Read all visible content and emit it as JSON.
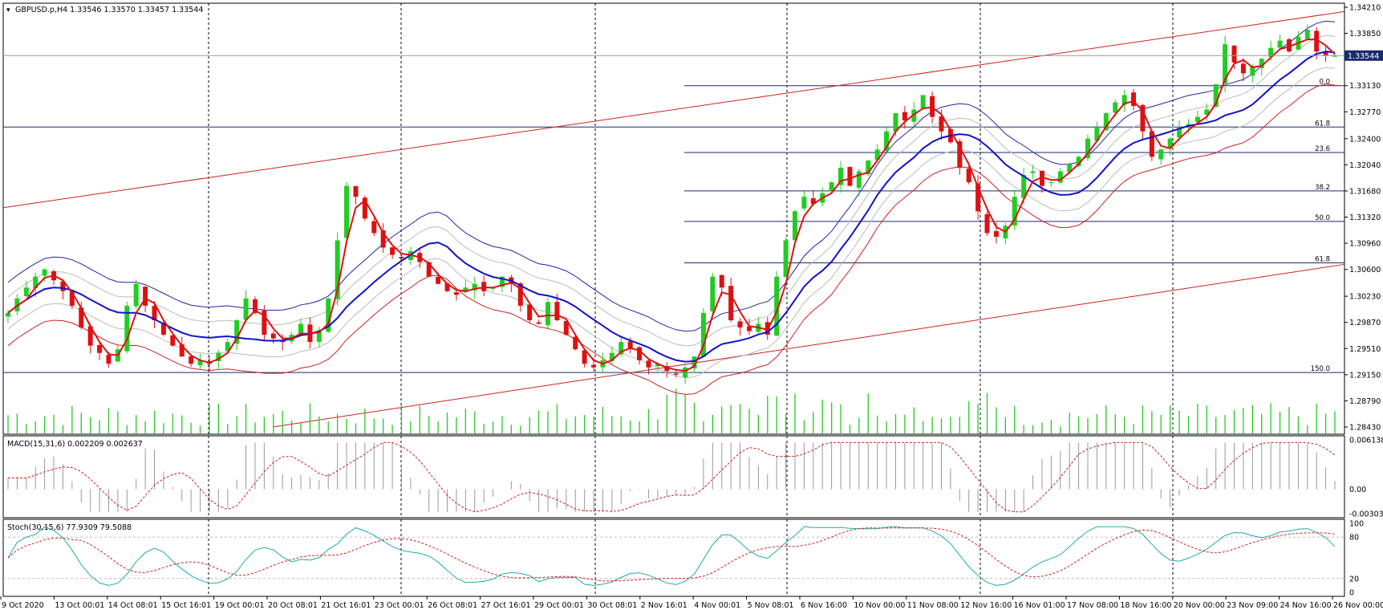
{
  "chart_data": {
    "type": "candlestick",
    "symbol_header": "GBPUSD.p,H4  1.33546 1.33570 1.33457 1.33544",
    "price_axis_labels": [
      "1.34210",
      "1.33850",
      "1.33130",
      "1.32770",
      "1.32400",
      "1.32040",
      "1.31680",
      "1.31320",
      "1.30960",
      "1.30600",
      "1.30230",
      "1.29870",
      "1.29510",
      "1.29150",
      "1.28790",
      "1.28430"
    ],
    "current_price_label": "1.33544",
    "price_range": [
      1.2843,
      1.3421
    ],
    "current_price": 1.33544,
    "date_labels": [
      "9 Oct 2020",
      "13 Oct 00:01",
      "14 Oct 08:01",
      "15 Oct 16:01",
      "19 Oct 00:01",
      "20 Oct 08:01",
      "21 Oct 16:01",
      "23 Oct 00:01",
      "26 Oct 08:01",
      "27 Oct 16:01",
      "29 Oct 00:01",
      "30 Oct 08:01",
      "2 Nov 16:01",
      "4 Nov 00:01",
      "5 Nov 08:01",
      "6 Nov 16:00",
      "10 Nov 00:00",
      "11 Nov 08:00",
      "12 Nov 16:00",
      "16 Nov 01:00",
      "17 Nov 08:00",
      "18 Nov 16:00",
      "20 Nov 00:00",
      "23 Nov 09:00",
      "24 Nov 16:00",
      "26 Nov 00:00"
    ],
    "close_series": [
      1.3,
      1.302,
      1.3035,
      1.305,
      1.306,
      1.3045,
      1.303,
      1.301,
      1.298,
      1.2955,
      1.2945,
      1.293,
      1.295,
      1.301,
      1.304,
      1.301,
      1.299,
      1.297,
      1.2955,
      1.294,
      1.293,
      1.2935,
      1.293,
      1.2945,
      1.296,
      1.299,
      1.302,
      1.3,
      1.297,
      1.2965,
      1.296,
      1.297,
      1.2985,
      1.296,
      1.2975,
      1.302,
      1.31,
      1.3175,
      1.316,
      1.313,
      1.311,
      1.309,
      1.308,
      1.3075,
      1.3085,
      1.307,
      1.305,
      1.304,
      1.303,
      1.3025,
      1.3035,
      1.304,
      1.303,
      1.3035,
      1.305,
      1.304,
      1.301,
      1.299,
      1.2985,
      1.3015,
      1.299,
      1.297,
      1.295,
      1.293,
      1.2925,
      1.2935,
      1.2945,
      1.296,
      1.295,
      1.2935,
      1.2925,
      1.293,
      1.292,
      1.2915,
      1.2925,
      1.294,
      1.3,
      1.305,
      1.3035,
      1.299,
      1.298,
      1.2975,
      1.2985,
      1.297,
      1.305,
      1.31,
      1.314,
      1.316,
      1.315,
      1.3165,
      1.318,
      1.32,
      1.3175,
      1.3195,
      1.321,
      1.3225,
      1.325,
      1.3275,
      1.3265,
      1.328,
      1.33,
      1.327,
      1.325,
      1.3235,
      1.32,
      1.318,
      1.314,
      1.311,
      1.3105,
      1.312,
      1.316,
      1.319,
      1.3195,
      1.3175,
      1.318,
      1.3195,
      1.3205,
      1.3215,
      1.324,
      1.3255,
      1.3275,
      1.329,
      1.33,
      1.3285,
      1.325,
      1.3215,
      1.3225,
      1.324,
      1.3255,
      1.326,
      1.327,
      1.328,
      1.3315,
      1.337,
      1.3345,
      1.333,
      1.334,
      1.335,
      1.3365,
      1.3375,
      1.336,
      1.338,
      1.339,
      1.336,
      1.3355,
      1.3354
    ],
    "indicators": {
      "macd": {
        "label": "MACD(15,31,6) 0.002209 0.002637",
        "axis_labels": [
          "0.006138",
          "0.00",
          "-0.003031"
        ],
        "range": [
          -0.003031,
          0.006138
        ]
      },
      "stochastic": {
        "label": "Stoch(30,15,6) 77.9309 79.5088",
        "axis_labels": [
          "100",
          "80",
          "20",
          "0"
        ],
        "range": [
          0,
          100
        ]
      }
    },
    "fibonacci_levels": [
      {
        "label": "0.0",
        "price": 1.3313
      },
      {
        "label": "61.8",
        "price": 1.3256
      },
      {
        "label": "23.6",
        "price": 1.3221
      },
      {
        "label": "38.2",
        "price": 1.3168
      },
      {
        "label": "50.0",
        "price": 1.3126
      },
      {
        "label": "61.8",
        "price": 1.3069
      },
      {
        "label": "150.0",
        "price": 1.2918
      }
    ],
    "colors": {
      "bull": "#22cc22",
      "bear": "#dd1111",
      "ma_fast": "#dd1111",
      "ma_slow": "#1111cc",
      "band_outer_top": "#2222aa",
      "band_outer_bottom": "#cc2222",
      "macd_signal": "#cc2222",
      "stoch_main": "#22aaaa",
      "stoch_signal": "#cc2222",
      "volume": "#22cc22"
    }
  }
}
